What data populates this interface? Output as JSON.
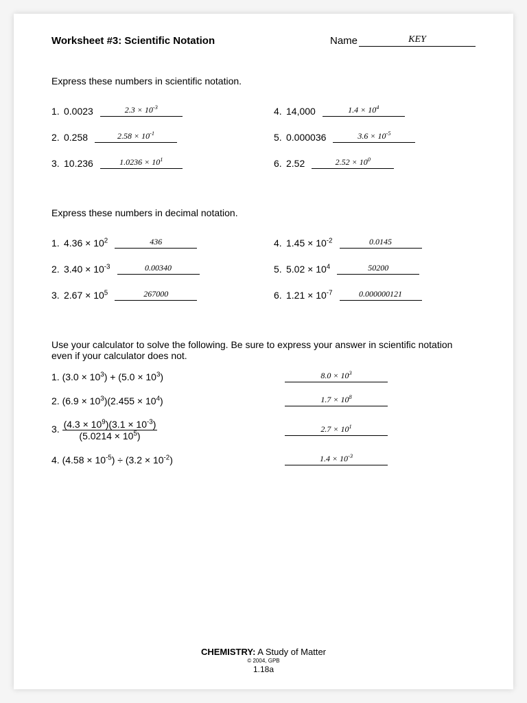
{
  "header": {
    "title": "Worksheet #3: Scientific Notation",
    "name_label": "Name",
    "name_value": "KEY"
  },
  "section1": {
    "instruction": "Express these numbers in scientific notation.",
    "left": [
      {
        "n": "1.",
        "q": "0.0023",
        "a": "2.3 × 10<sup>-3</sup>"
      },
      {
        "n": "2.",
        "q": "0.258",
        "a": "2.58 × 10<sup>-1</sup>"
      },
      {
        "n": "3.",
        "q": "10.236",
        "a": "1.0236 × 10<sup>1</sup>"
      }
    ],
    "right": [
      {
        "n": "4.",
        "q": "14,000",
        "a": "1.4 × 10<sup>4</sup>"
      },
      {
        "n": "5.",
        "q": "0.000036",
        "a": "3.6 × 10<sup>-5</sup>"
      },
      {
        "n": "6.",
        "q": "2.52",
        "a": "2.52 × 10<sup>0</sup>"
      }
    ]
  },
  "section2": {
    "instruction": "Express these numbers in decimal notation.",
    "left": [
      {
        "n": "1.",
        "q": "4.36 × 10<sup>2</sup>",
        "a": "436"
      },
      {
        "n": "2.",
        "q": "3.40 × 10<sup>-3</sup>",
        "a": "0.00340"
      },
      {
        "n": "3.",
        "q": "2.67 × 10<sup>5</sup>",
        "a": "267000"
      }
    ],
    "right": [
      {
        "n": "4.",
        "q": "1.45 × 10<sup>-2</sup>",
        "a": "0.0145"
      },
      {
        "n": "5.",
        "q": "5.02 × 10<sup>4</sup>",
        "a": "50200"
      },
      {
        "n": "6.",
        "q": "1.21 × 10<sup>-7</sup>",
        "a": "0.000000121"
      }
    ]
  },
  "section3": {
    "instruction": "Use your calculator to solve the following. Be sure to express your answer in scientific notation even if your calculator does not.",
    "items": [
      {
        "n": "1.",
        "q": "(3.0 × 10<sup>3</sup>) + (5.0 × 10<sup>3</sup>)",
        "a": "8.0 × 10<sup>3</sup>"
      },
      {
        "n": "2.",
        "q": "(6.9 × 10<sup>3</sup>)(2.455 × 10<sup>4</sup>)",
        "a": "1.7 × 10<sup>8</sup>"
      },
      {
        "n": "3.",
        "frac_num": "(4.3 × 10<sup>9</sup>)(3.1 × 10<sup>-3</sup>)",
        "frac_den": "(5.0214 × 10<sup>5</sup>)",
        "a": "2.7 × 10<sup>1</sup>"
      },
      {
        "n": "4.",
        "q": "(4.58 × 10<sup>-5</sup>) ÷ (3.2 × 10<sup>-2</sup>)",
        "a": "1.4 × 10<sup>-3</sup>"
      }
    ]
  },
  "footer": {
    "line1_bold": "CHEMISTRY:",
    "line1_rest": " A Study of Matter",
    "copyright": "© 2004, GPB",
    "page": "1.18a"
  }
}
